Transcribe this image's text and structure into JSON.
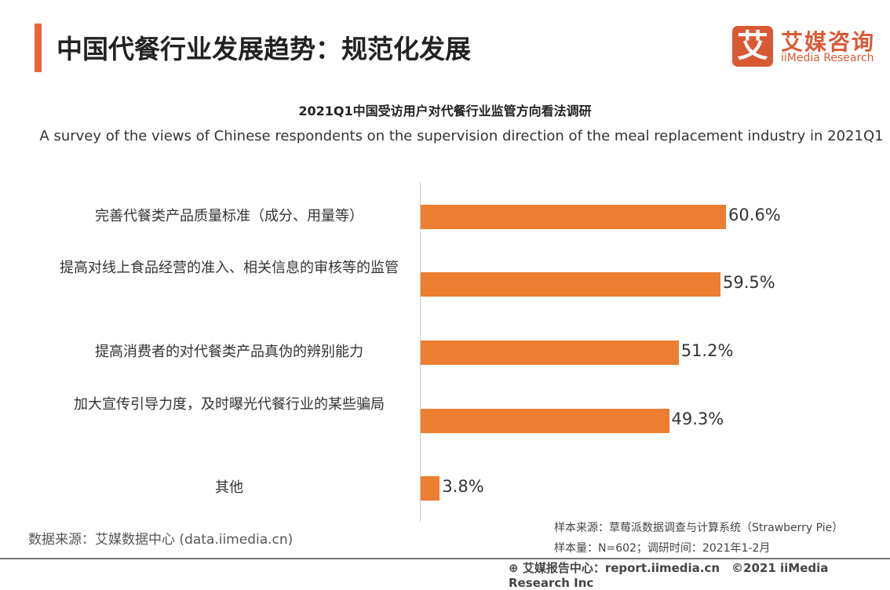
{
  "header": {
    "title": "中国代餐行业发展趋势：规范化发展",
    "logo_cn": "艾媒咨询",
    "logo_en": "iiMedia Research",
    "logo_mark": "艾"
  },
  "chart_data": {
    "type": "bar",
    "orientation": "horizontal",
    "title": "2021Q1中国受访用户对代餐行业监管方向看法调研",
    "subtitle": "A survey of the views of Chinese respondents on the supervision direction of the meal replacement industry in 2021Q1",
    "categories": [
      "完善代餐类产品质量标准（成分、用量等）",
      "提高对线上食品经营的准入、相关信息的审核等的监管",
      "提高消费者的对代餐类产品真伪的辨别能力",
      "加大宣传引导力度，及时曝光代餐行业的某些骗局",
      "其他"
    ],
    "values": [
      60.6,
      59.5,
      51.2,
      49.3,
      3.8
    ],
    "labels": [
      "60.6%",
      "59.5%",
      "51.2%",
      "49.3%",
      "3.8%"
    ],
    "unit": "%",
    "color": "#ed7d31",
    "grid": false
  },
  "footer": {
    "source": "数据来源：艾媒数据中心 (data.iimedia.cn)",
    "sample_source": "样本来源：草莓派数据调查与计算系统（Strawberry Pie）",
    "sample_size": "样本量：N=602；调研时间：2021年1-2月",
    "report": "艾媒报告中心：report.iimedia.cn　©2021  iiMedia Research  Inc"
  }
}
